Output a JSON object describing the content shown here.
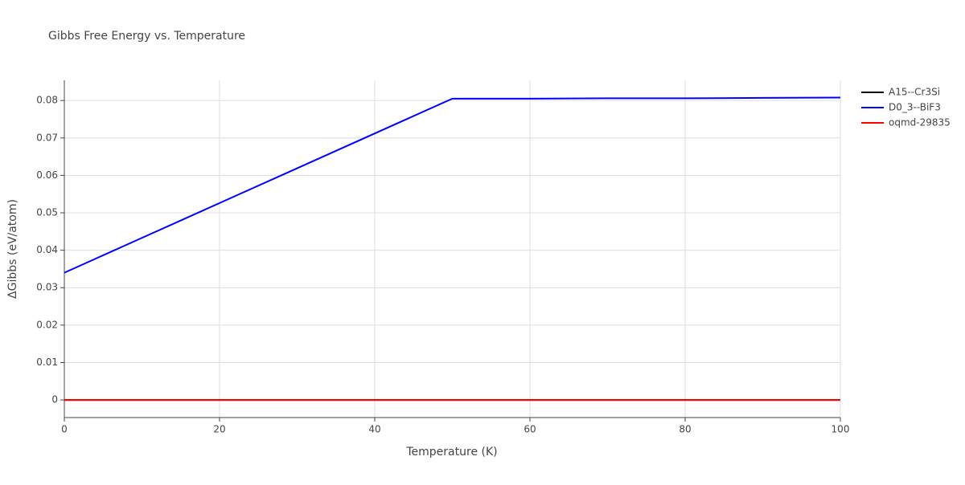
{
  "chart_data": {
    "type": "line",
    "title": "Gibbs Free Energy vs. Temperature",
    "x_label": "Temperature (K)",
    "y_label": "ΔGibbs (eV/atom)",
    "x": [
      0,
      10,
      20,
      30,
      40,
      50,
      60,
      70,
      80,
      90,
      100
    ],
    "series": [
      {
        "name": "A15--Cr3Si",
        "color": "#000000",
        "values": [
          0,
          0,
          0,
          0,
          0,
          0,
          0,
          0,
          0,
          0,
          0
        ]
      },
      {
        "name": "D0_3--BiF3",
        "color": "#0000ff",
        "values": [
          0.034,
          0.0433,
          0.0526,
          0.0619,
          0.0712,
          0.0805,
          0.0805,
          0.0806,
          0.0806,
          0.0807,
          0.0808
        ]
      },
      {
        "name": "oqmd-29835",
        "color": "#ff0000",
        "values": [
          0,
          0,
          0,
          0,
          0,
          0,
          0,
          0,
          0,
          0,
          0
        ]
      }
    ],
    "xlim": [
      0,
      100
    ],
    "xticks": [
      0,
      20,
      40,
      60,
      80,
      100
    ],
    "ylim": [
      -0.0047,
      0.0854
    ],
    "yticks": [
      0,
      0.01,
      0.02,
      0.03,
      0.04,
      0.05,
      0.06,
      0.07,
      0.08
    ],
    "grid": true,
    "legend": "outside-right"
  }
}
